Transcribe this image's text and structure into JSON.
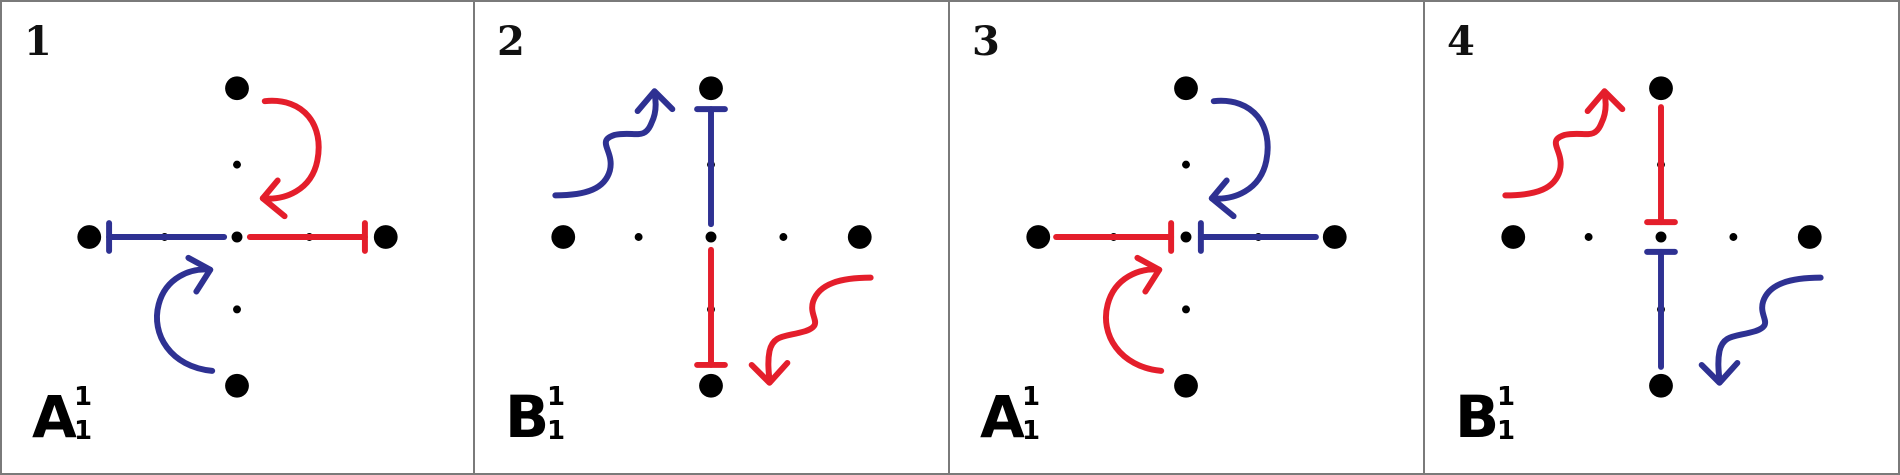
{
  "colors": {
    "red": "#e41e2b",
    "blue": "#2e3192",
    "dot": "#000000",
    "border": "#7a7a7a"
  },
  "panels": [
    {
      "number": "1",
      "symbol": {
        "base": "A",
        "superscript": "1",
        "subscript": "1"
      },
      "bars": [
        {
          "color": "blue",
          "direction": "left"
        },
        {
          "color": "red",
          "direction": "right"
        }
      ],
      "arrows": [
        {
          "color": "red",
          "shape": "curl",
          "side": "top"
        },
        {
          "color": "blue",
          "shape": "curl",
          "side": "bottom"
        }
      ]
    },
    {
      "number": "2",
      "symbol": {
        "base": "B",
        "superscript": "1",
        "subscript": "1"
      },
      "bars": [
        {
          "color": "blue",
          "direction": "up"
        },
        {
          "color": "red",
          "direction": "down"
        }
      ],
      "arrows": [
        {
          "color": "blue",
          "shape": "wave",
          "side": "top-left"
        },
        {
          "color": "red",
          "shape": "wave",
          "side": "bottom-right"
        }
      ]
    },
    {
      "number": "3",
      "symbol": {
        "base": "A",
        "superscript": "1",
        "subscript": "1"
      },
      "bars": [
        {
          "color": "red",
          "direction": "left-inward"
        },
        {
          "color": "blue",
          "direction": "right-inward"
        }
      ],
      "arrows": [
        {
          "color": "blue",
          "shape": "curl",
          "side": "top"
        },
        {
          "color": "red",
          "shape": "curl",
          "side": "bottom"
        }
      ]
    },
    {
      "number": "4",
      "symbol": {
        "base": "B",
        "superscript": "1",
        "subscript": "1"
      },
      "bars": [
        {
          "color": "red",
          "direction": "up-inward"
        },
        {
          "color": "blue",
          "direction": "down-inward"
        }
      ],
      "arrows": [
        {
          "color": "red",
          "shape": "wave",
          "side": "top-left"
        },
        {
          "color": "blue",
          "shape": "wave",
          "side": "bottom-right"
        }
      ]
    }
  ]
}
